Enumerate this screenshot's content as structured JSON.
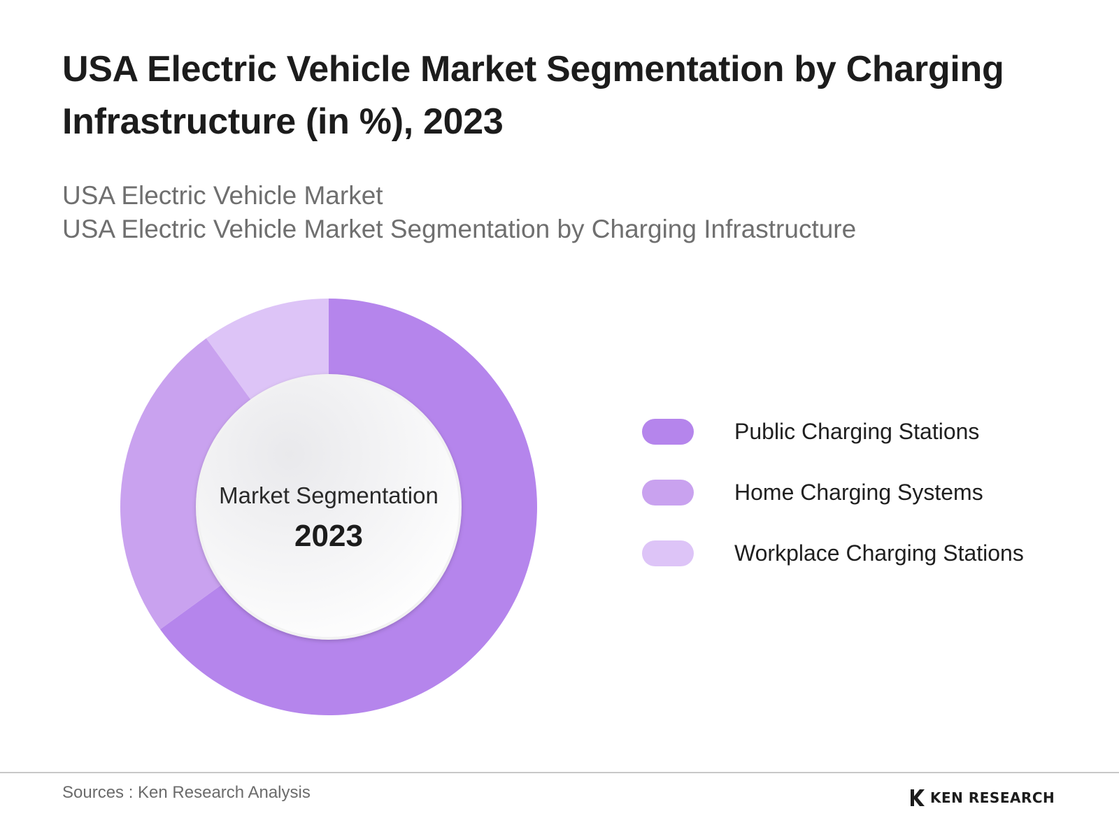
{
  "header": {
    "title": "USA Electric Vehicle Market Segmentation by Charging Infrastructure (in %), 2023",
    "subtitle_line1": "USA Electric Vehicle Market",
    "subtitle_line2": "USA Electric Vehicle Market Segmentation by Charging Infrastructure"
  },
  "chart_data": {
    "type": "pie",
    "title": "USA Electric Vehicle Market Segmentation by Charging Infrastructure (in %), 2023",
    "center_label": "Market Segmentation",
    "center_year": "2023",
    "categories": [
      "Public Charging Stations",
      "Home Charging Systems",
      "Workplace Charging Stations"
    ],
    "values": [
      65,
      25,
      10
    ],
    "colors": [
      "#b585ec",
      "#c9a2ef",
      "#ddc4f7"
    ],
    "legend_position": "right"
  },
  "footer": {
    "source": "Sources : Ken Research Analysis",
    "brand": "KEN RESEARCH"
  }
}
